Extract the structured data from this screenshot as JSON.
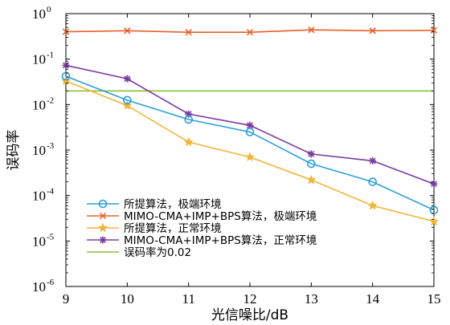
{
  "chart_data": {
    "type": "line",
    "xlabel": "光信噪比/dB",
    "ylabel": "误码率",
    "x": [
      9,
      10,
      11,
      12,
      13,
      14,
      15
    ],
    "xlim": [
      9,
      15
    ],
    "ylim": [
      1e-06,
      1
    ],
    "yscale": "log",
    "x_tick_labels": [
      "9",
      "10",
      "11",
      "12",
      "13",
      "14",
      "15"
    ],
    "y_tick_labels": [
      {
        "base": "10",
        "exp": "-6"
      },
      {
        "base": "10",
        "exp": "-5"
      },
      {
        "base": "10",
        "exp": "-4"
      },
      {
        "base": "10",
        "exp": "-3"
      },
      {
        "base": "10",
        "exp": "-2"
      },
      {
        "base": "10",
        "exp": "-1"
      },
      {
        "base": "10",
        "exp": "0"
      }
    ],
    "grid": false,
    "legend_position": "bottom-left",
    "series": [
      {
        "name": "所提算法，极端环境",
        "color": "#2b9fd8",
        "marker": "circle",
        "values": [
          0.042,
          0.0125,
          0.0047,
          0.0025,
          0.0005,
          0.0002,
          4.8e-05
        ]
      },
      {
        "name": "MIMO-CMA+IMP+BPS算法，极端环境",
        "color": "#e8612c",
        "marker": "x",
        "values": [
          0.4,
          0.42,
          0.39,
          0.39,
          0.44,
          0.42,
          0.43
        ]
      },
      {
        "name": "所提算法，正常环境",
        "color": "#f2b43a",
        "marker": "star",
        "values": [
          0.033,
          0.0095,
          0.0015,
          0.0007,
          0.00022,
          6e-05,
          2.7e-05
        ]
      },
      {
        "name": "MIMO-CMA+IMP+BPS算法，正常环境",
        "color": "#7b3aa0",
        "marker": "asterisk",
        "values": [
          0.073,
          0.037,
          0.0062,
          0.0035,
          0.00082,
          0.00058,
          0.00018
        ]
      },
      {
        "name": "误码率为0.02",
        "color": "#8cbf3f",
        "marker": "none",
        "values": [
          0.02,
          0.02,
          0.02,
          0.02,
          0.02,
          0.02,
          0.02
        ]
      }
    ]
  }
}
